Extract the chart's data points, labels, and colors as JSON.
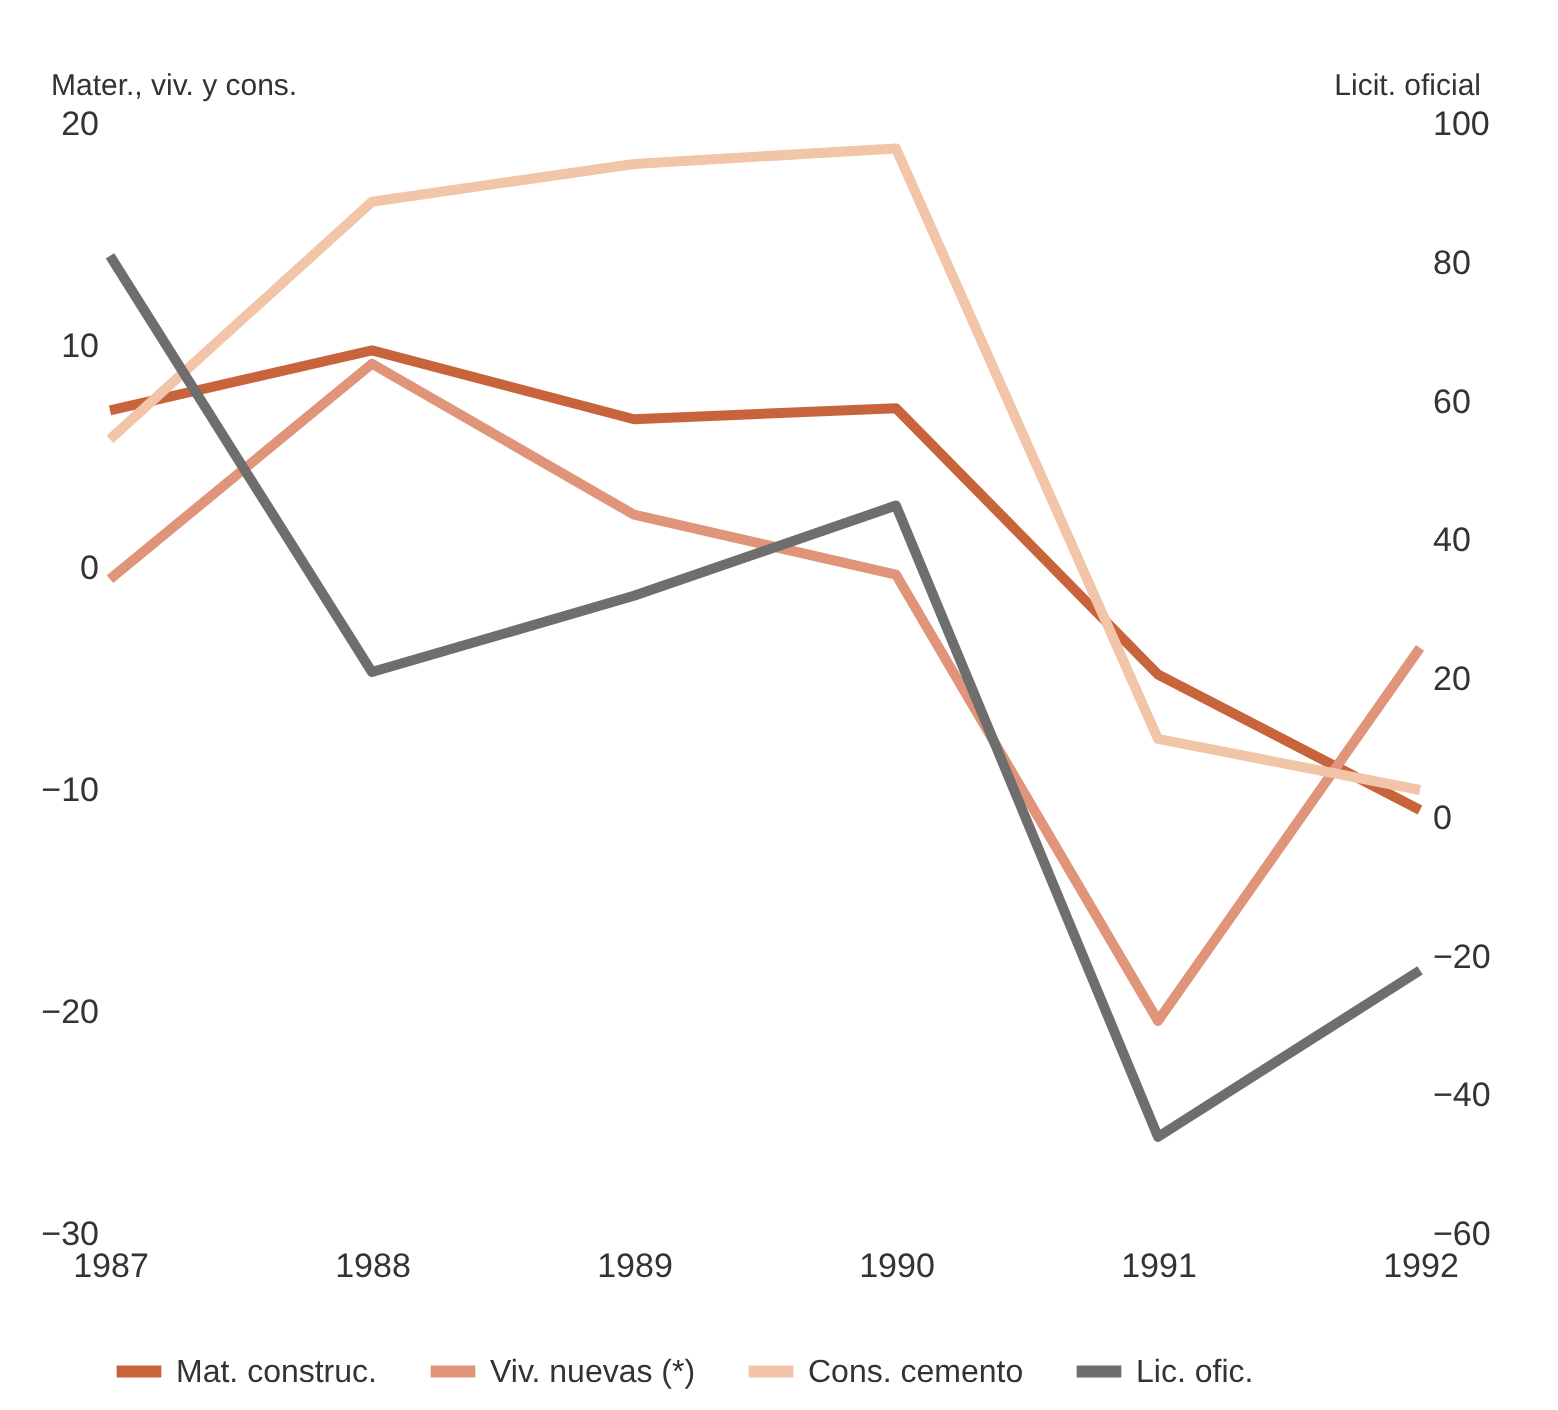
{
  "chart_data": {
    "type": "line",
    "ylabel": "Mater., viv. y cons.",
    "y2label": "Licit. oficial",
    "categories": [
      "1987",
      "1988",
      "1989",
      "1990",
      "1991",
      "1992"
    ],
    "series": [
      {
        "name": "Mat. construc.",
        "color": "#c8643c",
        "values": [
          7.1,
          9.8,
          6.7,
          7.2,
          -4.8,
          -10.9
        ]
      },
      {
        "name": "Viv. nuevas (*)",
        "color": "#e0957a",
        "values": [
          -0.5,
          9.2,
          2.4,
          -0.3,
          -20.4,
          -3.6
        ]
      },
      {
        "name": "Cons. cemento",
        "color": "#f2c4a8",
        "values": [
          5.8,
          16.5,
          18.2,
          18.9,
          -7.7,
          -10
        ]
      },
      {
        "name": "Lic. ofic.",
        "color": "#6e6e6e",
        "axis": "y2",
        "values": [
          81,
          21,
          32,
          45,
          -46,
          -22
        ]
      }
    ],
    "ylim": [
      -30,
      20
    ],
    "yticks": [
      -30,
      -20,
      -10,
      0,
      10,
      20
    ],
    "y2lim": [
      -60,
      100
    ],
    "y2ticks": [
      -60,
      -40,
      -20,
      0,
      20,
      40,
      60,
      80,
      100
    ],
    "grid": false,
    "legend": "bottom",
    "marker": "none",
    "line_style": "solid"
  }
}
